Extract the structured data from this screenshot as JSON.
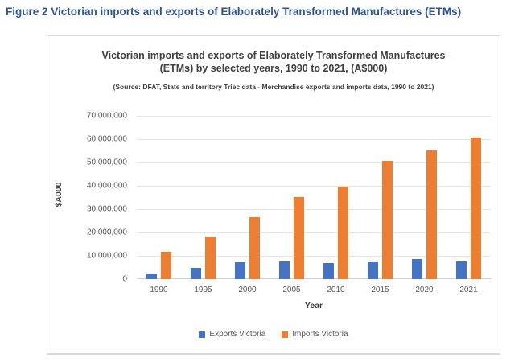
{
  "figure_caption": "Figure 2 Victorian imports and exports of Elaborately Transformed Manufactures (ETMs)",
  "colors": {
    "caption_blue": "#2F5496",
    "exports_blue": "#4472C4",
    "imports_orange": "#ED7D31",
    "axis_text_gray": "#595959",
    "title_gray": "#404040",
    "gridline_gray": "#E4E4E4",
    "card_border_gray": "#D9D9D9"
  },
  "chart_data": {
    "type": "bar",
    "title": "Victorian imports and exports of Elaborately Transformed Manufactures (ETMs) by selected years, 1990 to 2021, (A$000)",
    "subtitle": "(Source: DFAT, State and territory Triec data - Merchandise exports and imports data, 1990 to 2021)",
    "xlabel": "Year",
    "ylabel": "$A000",
    "categories": [
      "1990",
      "1995",
      "2000",
      "2005",
      "2010",
      "2015",
      "2020",
      "2021"
    ],
    "series": [
      {
        "name": "Exports Victoria",
        "color": "#4472C4",
        "values": [
          2300000,
          4800000,
          7200000,
          7500000,
          6800000,
          7200000,
          8600000,
          7700000
        ]
      },
      {
        "name": "Imports Victoria",
        "color": "#ED7D31",
        "values": [
          11900000,
          18400000,
          26700000,
          35100000,
          39500000,
          50700000,
          55200000,
          60700000
        ]
      }
    ],
    "ylim": [
      0,
      70000000
    ],
    "ytick_step": 10000000,
    "ytick_labels": [
      "0",
      "10,000,000",
      "20,000,000",
      "30,000,000",
      "40,000,000",
      "50,000,000",
      "60,000,000",
      "70,000,000"
    ],
    "grid": true,
    "legend_position": "bottom"
  }
}
